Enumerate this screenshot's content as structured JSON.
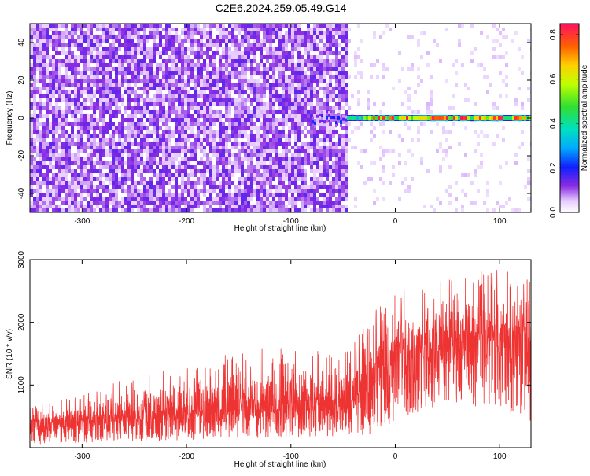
{
  "title": "C2E6.2024.259.05.49.G14",
  "chart_data": [
    {
      "type": "heatmap",
      "xlabel": "Height of straight line (km)",
      "ylabel": "Frequency (Hz)",
      "xlim": [
        -350,
        130
      ],
      "ylim": [
        -50,
        50
      ],
      "x_ticks": [
        -300,
        -200,
        -100,
        0,
        100
      ],
      "y_ticks": [
        -40,
        -20,
        0,
        20,
        40
      ],
      "colorbar": {
        "label": "Normalized spectral amplitude",
        "range": [
          0.0,
          0.85
        ],
        "ticks": [
          0.0,
          0.2,
          0.4,
          0.6,
          0.8
        ]
      },
      "description_regions": [
        {
          "x_range": [
            -350,
            -48
          ],
          "freq_range": [
            -50,
            50
          ],
          "amplitude": "~0.05-0.15 noise"
        },
        {
          "x_range": [
            -48,
            130
          ],
          "freq_range": [
            -2,
            2
          ],
          "amplitude": "up to ~0.85 signal line near 0 Hz"
        }
      ]
    },
    {
      "type": "line",
      "xlabel": "Height of straight line (km)",
      "ylabel": "SNR (10 * v/v)",
      "xlim": [
        -350,
        130
      ],
      "ylim": [
        0,
        3000
      ],
      "x_ticks": [
        -300,
        -200,
        -100,
        0,
        100
      ],
      "y_ticks": [
        1000,
        2000,
        3000
      ],
      "series": [
        {
          "color": "#ee3333",
          "envelope_x": [
            -350,
            -300,
            -250,
            -200,
            -150,
            -100,
            -50,
            -25,
            0,
            50,
            100,
            130
          ],
          "envelope_low": [
            50,
            80,
            100,
            120,
            150,
            160,
            180,
            200,
            400,
            700,
            600,
            400
          ],
          "envelope_mid": [
            350,
            400,
            450,
            520,
            620,
            640,
            700,
            950,
            1500,
            1750,
            1700,
            1600
          ],
          "envelope_high": [
            650,
            800,
            1100,
            1200,
            1500,
            1500,
            1450,
            2100,
            2400,
            2600,
            2800,
            2600
          ]
        }
      ]
    }
  ]
}
